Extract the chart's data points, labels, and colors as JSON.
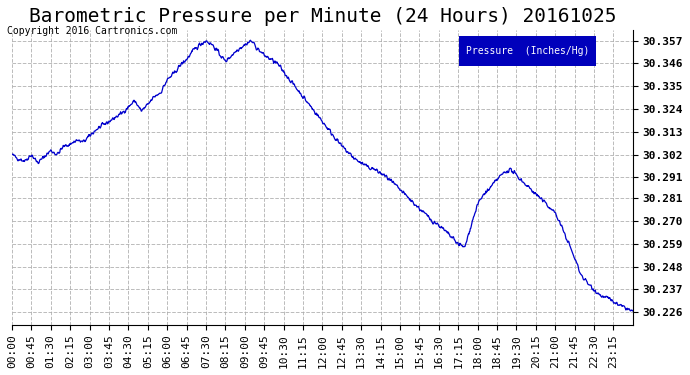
{
  "title": "Barometric Pressure per Minute (24 Hours) 20161025",
  "copyright": "Copyright 2016 Cartronics.com",
  "legend_label": "Pressure  (Inches/Hg)",
  "ylabel_ticks": [
    30.226,
    30.237,
    30.248,
    30.259,
    30.27,
    30.281,
    30.291,
    30.302,
    30.313,
    30.324,
    30.335,
    30.346,
    30.357
  ],
  "ylim": [
    30.22,
    30.362
  ],
  "line_color": "#0000cc",
  "bg_color": "#ffffff",
  "grid_color": "#aaaaaa",
  "title_fontsize": 14,
  "tick_fontsize": 8,
  "x_tick_labels": [
    "00:00",
    "00:45",
    "01:30",
    "02:15",
    "03:00",
    "03:45",
    "04:30",
    "05:15",
    "06:00",
    "06:45",
    "07:30",
    "08:15",
    "09:00",
    "09:45",
    "10:30",
    "11:15",
    "12:00",
    "12:45",
    "13:30",
    "14:15",
    "15:00",
    "15:45",
    "16:30",
    "17:15",
    "18:00",
    "18:45",
    "19:30",
    "20:15",
    "21:00",
    "21:45",
    "22:30",
    "23:15"
  ],
  "keypoints_x": [
    0,
    15,
    30,
    45,
    60,
    75,
    90,
    105,
    120,
    135,
    150,
    165,
    180,
    195,
    210,
    225,
    240,
    255,
    270,
    285,
    300,
    315,
    330,
    345,
    360,
    375,
    390,
    405,
    420,
    435,
    450,
    465,
    480,
    495,
    510,
    525,
    540,
    555,
    570,
    585,
    600,
    615,
    630,
    645,
    660,
    675,
    690,
    705,
    720,
    735,
    750,
    765,
    780,
    795,
    810,
    825,
    840,
    855,
    870,
    885,
    900,
    915,
    930,
    945,
    960,
    975,
    990,
    1005,
    1020,
    1035,
    1050,
    1065,
    1080,
    1095,
    1110,
    1125,
    1140,
    1155,
    1170,
    1185,
    1200,
    1215,
    1230,
    1245,
    1260,
    1275,
    1290,
    1305,
    1320,
    1335,
    1350,
    1365,
    1380,
    1395,
    1410,
    1425,
    1440
  ],
  "keypoints_y": [
    30.302,
    30.3,
    30.299,
    30.302,
    30.298,
    30.301,
    30.304,
    30.302,
    30.306,
    30.307,
    30.309,
    30.308,
    30.311,
    30.314,
    30.316,
    30.318,
    30.32,
    30.322,
    30.325,
    30.328,
    30.323,
    30.326,
    30.33,
    30.332,
    30.338,
    30.341,
    30.345,
    30.348,
    30.352,
    30.355,
    30.357,
    30.355,
    30.351,
    30.347,
    30.35,
    30.353,
    30.355,
    30.357,
    30.353,
    30.35,
    30.348,
    30.346,
    30.342,
    30.338,
    30.334,
    30.33,
    30.326,
    30.322,
    30.318,
    30.314,
    30.31,
    30.306,
    30.303,
    30.3,
    30.298,
    30.296,
    30.295,
    30.293,
    30.291,
    30.288,
    30.285,
    30.282,
    30.279,
    30.276,
    30.273,
    30.27,
    30.268,
    30.265,
    30.262,
    30.259,
    30.257,
    30.268,
    30.278,
    30.283,
    30.286,
    30.29,
    30.293,
    30.295,
    30.292,
    30.289,
    30.286,
    30.283,
    30.28,
    30.277,
    30.274,
    30.267,
    30.26,
    30.252,
    30.244,
    30.24,
    30.237,
    30.234,
    30.233,
    30.231,
    30.229,
    30.228,
    30.226
  ]
}
